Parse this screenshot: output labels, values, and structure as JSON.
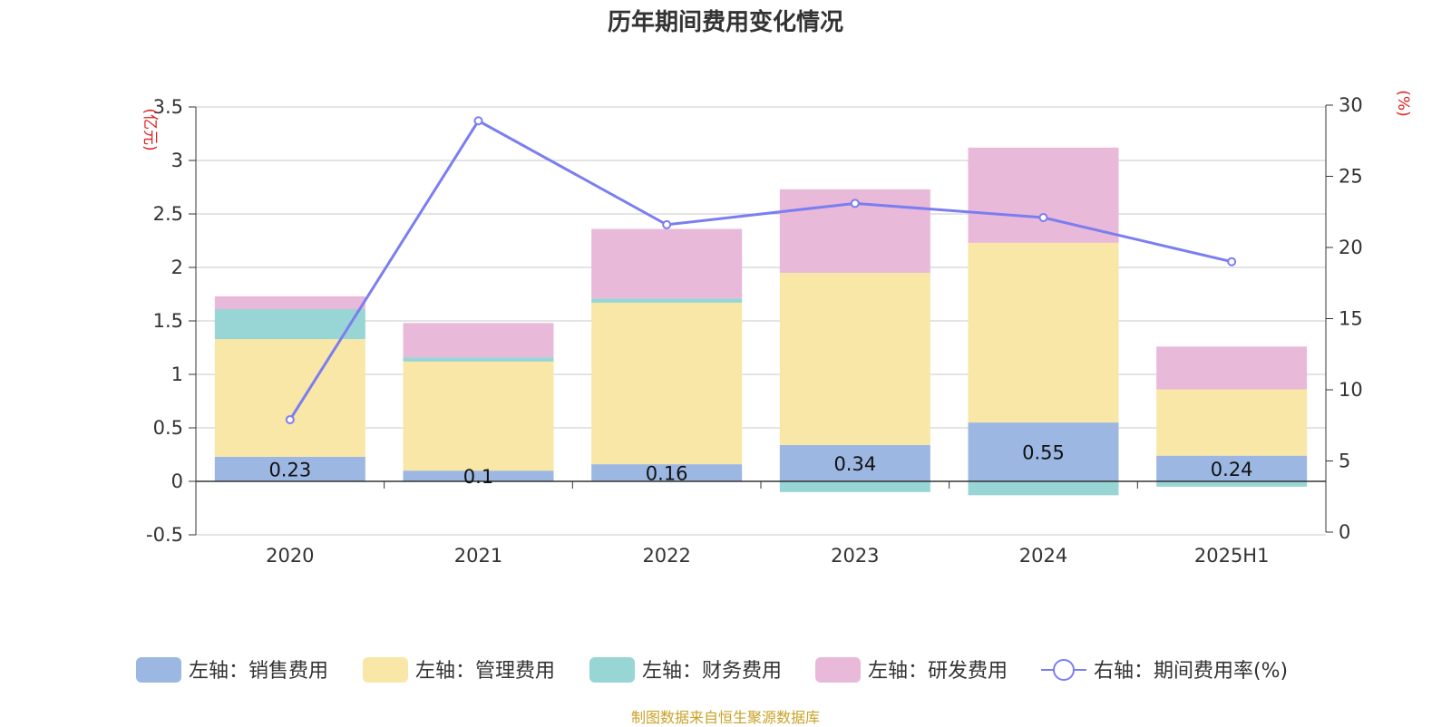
{
  "title": "历年期间费用变化情况",
  "source_note": "制图数据来自恒生聚源数据库",
  "chart_data": {
    "type": "bar",
    "stacked": true,
    "title": "历年期间费用变化情况",
    "categories": [
      "2020",
      "2021",
      "2022",
      "2023",
      "2024",
      "2025H1"
    ],
    "left_axis": {
      "unit": "(亿元)",
      "ylim": [
        -0.5,
        3.5
      ],
      "ticks": [
        "-0.5",
        "0",
        "0.5",
        "1",
        "1.5",
        "2",
        "2.5",
        "3",
        "3.5"
      ]
    },
    "right_axis": {
      "unit": "(%)",
      "ylim": [
        0,
        30
      ],
      "ticks": [
        "0",
        "5",
        "10",
        "15",
        "20",
        "25",
        "30"
      ]
    },
    "grid": true,
    "legend_position": "bottom",
    "series": [
      {
        "name": "左轴：销售费用",
        "axis": "left",
        "type": "bar",
        "color": "#9cb7e2",
        "values": [
          0.23,
          0.1,
          0.16,
          0.34,
          0.55,
          0.24
        ],
        "labels": [
          "0.23",
          "0.1",
          "0.16",
          "0.34",
          "0.55",
          "0.24"
        ]
      },
      {
        "name": "左轴：管理费用",
        "axis": "left",
        "type": "bar",
        "color": "#f8e7a7",
        "values": [
          1.1,
          1.02,
          1.51,
          1.61,
          1.68,
          0.62
        ]
      },
      {
        "name": "左轴：财务费用",
        "axis": "left",
        "type": "bar",
        "color": "#98d5d5",
        "values": [
          0.28,
          0.04,
          0.04,
          -0.1,
          -0.13,
          -0.05
        ]
      },
      {
        "name": "左轴：研发费用",
        "axis": "left",
        "type": "bar",
        "color": "#e8b9d9",
        "values": [
          0.12,
          0.32,
          0.65,
          0.78,
          0.89,
          0.4
        ]
      },
      {
        "name": "右轴：期间费用率(%)",
        "axis": "right",
        "type": "line",
        "color": "#7b7ef0",
        "values": [
          7.9,
          28.9,
          21.6,
          23.1,
          22.1,
          19.0
        ]
      }
    ]
  }
}
